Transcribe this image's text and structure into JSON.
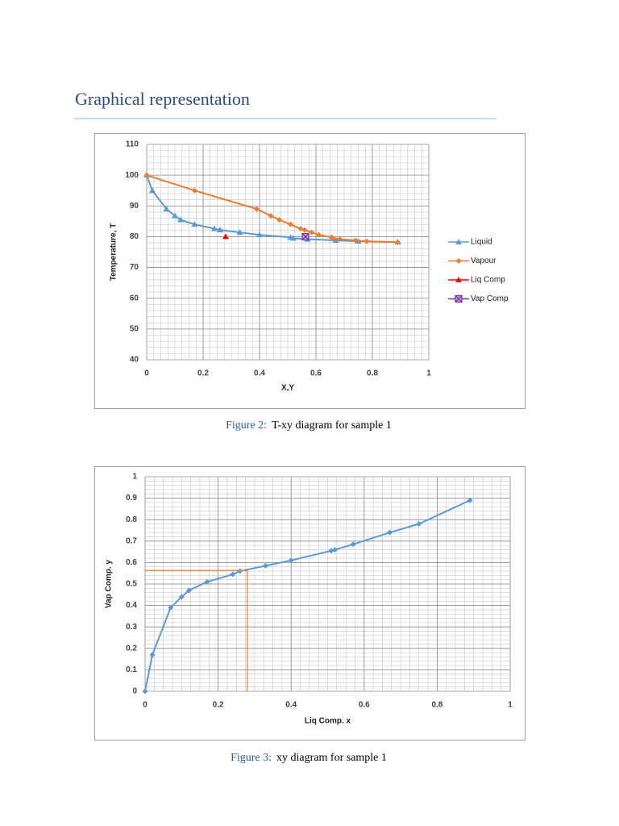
{
  "header": {
    "title": "Graphical representation"
  },
  "chart_data": [
    {
      "type": "line",
      "xlabel": "X,Y",
      "ylabel": "Temperature, T",
      "xlim": [
        0,
        1
      ],
      "xticks": [
        0,
        0.2,
        0.4,
        0.6,
        0.8,
        1
      ],
      "ylim": [
        40,
        110
      ],
      "yticks": [
        40,
        50,
        60,
        70,
        80,
        90,
        100,
        110
      ],
      "grid": true,
      "minor_grid": [
        0.025,
        2
      ],
      "legend": "right",
      "series": [
        {
          "name": "Liquid",
          "color": "#5b9bd5",
          "marker": "triangle",
          "x": [
            0,
            0.02,
            0.07,
            0.1,
            0.12,
            0.17,
            0.24,
            0.26,
            0.33,
            0.4,
            0.51,
            0.52,
            0.57,
            0.67,
            0.75,
            0.89
          ],
          "values": [
            100,
            95,
            89,
            86.8,
            85.5,
            84,
            82.6,
            82.2,
            81.4,
            80.6,
            79.8,
            79.5,
            79.2,
            78.8,
            78.5,
            78.2
          ]
        },
        {
          "name": "Vapour",
          "color": "#ed7d31",
          "marker": "diamond",
          "x": [
            0,
            0.17,
            0.39,
            0.44,
            0.47,
            0.51,
            0.545,
            0.56,
            0.585,
            0.61,
            0.655,
            0.66,
            0.685,
            0.74,
            0.78,
            0.89
          ],
          "values": [
            100,
            95,
            89,
            86.8,
            85.5,
            84,
            82.6,
            82.2,
            81.4,
            80.6,
            79.8,
            79.5,
            79.2,
            78.8,
            78.5,
            78.2
          ]
        },
        {
          "name": "Liq Comp",
          "color": "#ff0000",
          "marker": "triangle",
          "x": [
            0.28
          ],
          "values": [
            80
          ]
        },
        {
          "name": "Vap Comp",
          "color": "#7030a0",
          "marker": "x-square",
          "x": [
            0.563
          ],
          "values": [
            80
          ]
        }
      ]
    },
    {
      "type": "line",
      "xlabel": "Liq Comp. x",
      "ylabel": "Vap Comp. y",
      "xlim": [
        0,
        1
      ],
      "xticks": [
        0,
        0.2,
        0.4,
        0.6,
        0.8,
        1
      ],
      "ylim": [
        0,
        1
      ],
      "yticks": [
        0,
        0.1,
        0.2,
        0.3,
        0.4,
        0.5,
        0.6,
        0.7,
        0.8,
        0.9,
        1
      ],
      "grid": true,
      "minor_grid": [
        0.025,
        0.02
      ],
      "series": [
        {
          "color": "#5b9bd5",
          "marker": "diamond",
          "x": [
            0,
            0.02,
            0.07,
            0.1,
            0.12,
            0.17,
            0.24,
            0.26,
            0.33,
            0.4,
            0.51,
            0.52,
            0.57,
            0.67,
            0.75,
            0.89
          ],
          "values": [
            0,
            0.17,
            0.39,
            0.44,
            0.47,
            0.51,
            0.545,
            0.56,
            0.585,
            0.61,
            0.655,
            0.66,
            0.685,
            0.74,
            0.78,
            0.89
          ]
        },
        {
          "color": "#ed7d31",
          "marker": "none",
          "x": [
            0,
            0.28,
            0.28
          ],
          "values": [
            0.563,
            0.563,
            0
          ]
        }
      ]
    }
  ],
  "captions": [
    {
      "label": "Figure 2:",
      "text": "T-xy diagram for sample 1"
    },
    {
      "label": "Figure 3:",
      "text": "xy diagram for sample 1"
    }
  ]
}
